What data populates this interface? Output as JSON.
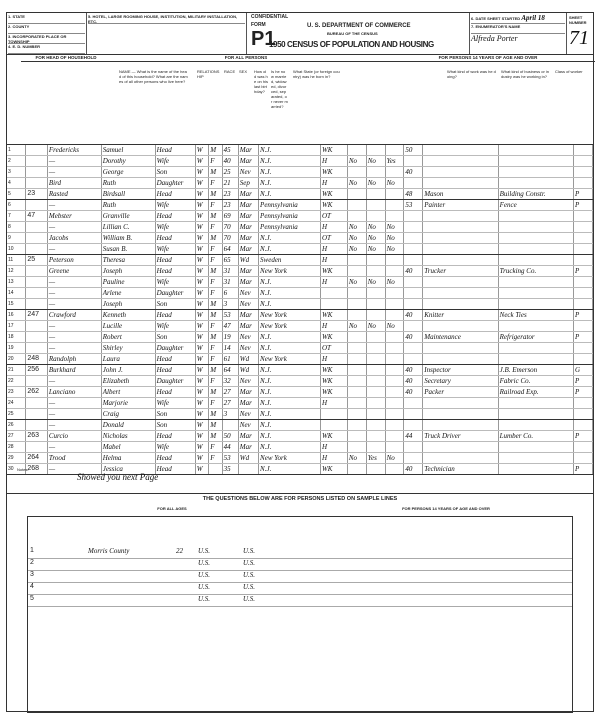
{
  "header": {
    "fields": [
      "1. STATE",
      "2. COUNTY",
      "3. INCORPORATED PLACE OR TOWNSHIP",
      "4. E. D. NUMBER"
    ],
    "hotel_label": "5. HOTEL, LARGE ROOMING HOUSE, INSTITUTION, MILITARY INSTALLATION, ETC.",
    "confidential": "CONFIDENTIAL",
    "form_label": "FORM",
    "form_number": "P1",
    "department": "U. S. DEPARTMENT OF COMMERCE",
    "bureau": "BUREAU OF THE CENSUS",
    "title": "1950 CENSUS OF POPULATION AND HOUSING",
    "date_label": "6. DATE SHEET STARTED",
    "date_value": "April 18",
    "enumerator_label": "7. ENUMERATOR'S NAME",
    "enumerator_value": "Alfreda Porter",
    "sheet_label": "SHEET NUMBER",
    "sheet_number": "71"
  },
  "sections": {
    "head": "FOR HEAD OF HOUSEHOLD",
    "all": "FOR ALL PERSONS",
    "over14": "FOR PERSONS 14 YEARS OF AGE AND OVER"
  },
  "column_questions": {
    "name": "NAME — What is the name of the head of this household? What are the names of all other persons who live here?",
    "relationship": "RELATIONSHIP",
    "race": "RACE",
    "sex": "SEX",
    "age": "How old was he on his last birthday?",
    "marital": "Is he now married, widowed, divorced, separated, or never married?",
    "birthplace": "What State (or foreign country) was he born in?",
    "occupation": "What kind of work was he doing?",
    "industry": "What kind of business or industry was he working in?",
    "class": "Class of worker"
  },
  "rows": [
    [
      "1",
      "",
      "Fredericks",
      "Samuel",
      "Head",
      "W",
      "M",
      "45",
      "Mar",
      "N.J.",
      "WK",
      "",
      "",
      "",
      "50",
      "",
      "",
      ""
    ],
    [
      "2",
      "",
      "—",
      "Dorothy",
      "Wife",
      "W",
      "F",
      "40",
      "Mar",
      "N.J.",
      "H",
      "No",
      "No",
      "Yes",
      "",
      "",
      "",
      ""
    ],
    [
      "3",
      "",
      "—",
      "George",
      "Son",
      "W",
      "M",
      "25",
      "Nev",
      "N.J.",
      "WK",
      "",
      "",
      "",
      "40",
      "",
      "",
      ""
    ],
    [
      "4",
      "",
      "Bird",
      "Ruth",
      "Daughter",
      "W",
      "F",
      "21",
      "Sep",
      "N.J.",
      "H",
      "No",
      "No",
      "No",
      "",
      "",
      "",
      ""
    ],
    [
      "5",
      "23",
      "Rasted",
      "Birdsall",
      "Head",
      "W",
      "M",
      "23",
      "Mar",
      "N.J.",
      "WK",
      "",
      "",
      "",
      "48",
      "Mason",
      "Building Constr.",
      "P"
    ],
    [
      "6",
      "",
      "—",
      "Ruth",
      "Wife",
      "W",
      "F",
      "23",
      "Mar",
      "Pennsylvania",
      "WK",
      "",
      "",
      "",
      "53",
      "Painter",
      "Fence",
      "P"
    ],
    [
      "7",
      "47",
      "Mebster",
      "Granville",
      "Head",
      "W",
      "M",
      "69",
      "Mar",
      "Pennsylvania",
      "OT",
      "",
      "",
      "",
      "",
      "",
      "",
      ""
    ],
    [
      "8",
      "",
      "—",
      "Lillian C.",
      "Wife",
      "W",
      "F",
      "70",
      "Mar",
      "Pennsylvania",
      "H",
      "No",
      "No",
      "No",
      "",
      "",
      "",
      ""
    ],
    [
      "9",
      "",
      "Jacobs",
      "William B.",
      "Head",
      "W",
      "M",
      "70",
      "Mar",
      "N.J.",
      "OT",
      "No",
      "No",
      "No",
      "",
      "",
      "",
      ""
    ],
    [
      "10",
      "",
      "—",
      "Susan B.",
      "Wife",
      "W",
      "F",
      "64",
      "Mar",
      "N.J.",
      "H",
      "No",
      "No",
      "No",
      "",
      "",
      "",
      ""
    ],
    [
      "11",
      "25",
      "Peterson",
      "Theresa",
      "Head",
      "W",
      "F",
      "65",
      "Wd",
      "Sweden",
      "H",
      "",
      "",
      "",
      "",
      "",
      "",
      ""
    ],
    [
      "12",
      "",
      "Greene",
      "Joseph",
      "Head",
      "W",
      "M",
      "31",
      "Mar",
      "New York",
      "WK",
      "",
      "",
      "",
      "40",
      "Trucker",
      "Trucking Co.",
      "P"
    ],
    [
      "13",
      "",
      "—",
      "Pauline",
      "Wife",
      "W",
      "F",
      "31",
      "Mar",
      "N.J.",
      "H",
      "No",
      "No",
      "No",
      "",
      "",
      "",
      ""
    ],
    [
      "14",
      "",
      "—",
      "Arlene",
      "Daughter",
      "W",
      "F",
      "6",
      "Nev",
      "N.J.",
      "",
      "",
      "",
      "",
      "",
      "",
      "",
      ""
    ],
    [
      "15",
      "",
      "—",
      "Joseph",
      "Son",
      "W",
      "M",
      "3",
      "Nev",
      "N.J.",
      "",
      "",
      "",
      "",
      "",
      "",
      "",
      ""
    ],
    [
      "16",
      "247",
      "Crawford",
      "Kenneth",
      "Head",
      "W",
      "M",
      "53",
      "Mar",
      "New York",
      "WK",
      "",
      "",
      "",
      "40",
      "Knitter",
      "Neck Ties",
      "P"
    ],
    [
      "17",
      "",
      "—",
      "Lucille",
      "Wife",
      "W",
      "F",
      "47",
      "Mar",
      "New York",
      "H",
      "No",
      "No",
      "No",
      "",
      "",
      "",
      ""
    ],
    [
      "18",
      "",
      "—",
      "Robert",
      "Son",
      "W",
      "M",
      "19",
      "Nev",
      "N.J.",
      "WK",
      "",
      "",
      "",
      "40",
      "Maintenance",
      "Refrigerator",
      "P"
    ],
    [
      "19",
      "",
      "—",
      "Shirley",
      "Daughter",
      "W",
      "F",
      "14",
      "Nev",
      "N.J.",
      "OT",
      "",
      "",
      "",
      "",
      "",
      "",
      ""
    ],
    [
      "20",
      "248",
      "Randolph",
      "Laura",
      "Head",
      "W",
      "F",
      "61",
      "Wd",
      "New York",
      "H",
      "",
      "",
      "",
      "",
      "",
      "",
      ""
    ],
    [
      "21",
      "256",
      "Burkhard",
      "John J.",
      "Head",
      "W",
      "M",
      "64",
      "Wd",
      "N.J.",
      "WK",
      "",
      "",
      "",
      "40",
      "Inspector",
      "J.B. Emerson",
      "G"
    ],
    [
      "22",
      "",
      "—",
      "Elizabeth",
      "Daughter",
      "W",
      "F",
      "32",
      "Nev",
      "N.J.",
      "WK",
      "",
      "",
      "",
      "40",
      "Secretary",
      "Fabric Co.",
      "P"
    ],
    [
      "23",
      "262",
      "Lanciano",
      "Albert",
      "Head",
      "W",
      "M",
      "27",
      "Mar",
      "N.J.",
      "WK",
      "",
      "",
      "",
      "40",
      "Packer",
      "Railroad Exp.",
      "P"
    ],
    [
      "24",
      "",
      "—",
      "Marjorie",
      "Wife",
      "W",
      "F",
      "27",
      "Mar",
      "N.J.",
      "H",
      "",
      "",
      "",
      "",
      "",
      "",
      ""
    ],
    [
      "25",
      "",
      "—",
      "Craig",
      "Son",
      "W",
      "M",
      "3",
      "Nev",
      "N.J.",
      "",
      "",
      "",
      "",
      "",
      "",
      "",
      ""
    ],
    [
      "26",
      "",
      "—",
      "Donald",
      "Son",
      "W",
      "M",
      "",
      "Nev",
      "N.J.",
      "",
      "",
      "",
      "",
      "",
      "",
      "",
      ""
    ],
    [
      "27",
      "263",
      "Curcio",
      "Nicholas",
      "Head",
      "W",
      "M",
      "50",
      "Mar",
      "N.J.",
      "WK",
      "",
      "",
      "",
      "44",
      "Truck Driver",
      "Lumber Co.",
      "P"
    ],
    [
      "28",
      "",
      "—",
      "Mabel",
      "Wife",
      "W",
      "F",
      "44",
      "Mar",
      "N.J.",
      "H",
      "",
      "",
      "",
      "",
      "",
      "",
      ""
    ],
    [
      "29",
      "264",
      "Trood",
      "Helma",
      "Head",
      "W",
      "F",
      "53",
      "Wd",
      "New York",
      "H",
      "No",
      "Yes",
      "No",
      "",
      "",
      "",
      ""
    ],
    [
      "30",
      "268",
      "—",
      "Jessica",
      "Head",
      "W",
      "",
      "35",
      "",
      "N.J.",
      "WK",
      "",
      "",
      "",
      "40",
      "Technician",
      "",
      "P"
    ]
  ],
  "notes": {
    "label": "Notes:",
    "handwritten": "Showed you next Page"
  },
  "bottom": {
    "title": "THE QUESTIONS BELOW ARE FOR PERSONS LISTED ON SAMPLE LINES",
    "all_ages": "FOR ALL AGES",
    "over14": "FOR PERSONS 14 YEARS OF AGE AND OVER",
    "line_entries": [
      [
        "1",
        "Morris County",
        "22",
        "U.S.",
        "U.S."
      ],
      [
        "2",
        "",
        "",
        "U.S.",
        "U.S."
      ],
      [
        "3",
        "",
        "",
        "U.S.",
        "U.S."
      ],
      [
        "4",
        "",
        "",
        "U.S.",
        "U.S."
      ],
      [
        "5",
        "",
        "",
        "U.S.",
        "U.S."
      ]
    ]
  }
}
